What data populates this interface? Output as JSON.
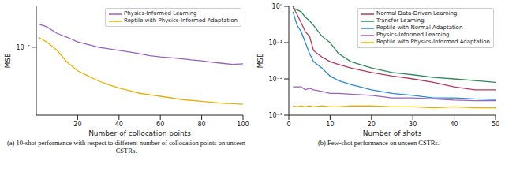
{
  "chart_data": [
    {
      "type": "line",
      "title": "(a) 10-shot performance with respect to different number of collocation points on unseen CSTRs.",
      "x_label": "Number of collocation points",
      "y_label": "MSE",
      "log": "y",
      "legend": "upper right",
      "x": [
        1,
        5,
        10,
        15,
        20,
        25,
        30,
        35,
        40,
        45,
        50,
        55,
        60,
        65,
        70,
        75,
        80,
        85,
        90,
        95,
        100
      ],
      "xlim": [
        0,
        100
      ],
      "xticks": [
        20,
        40,
        60,
        80,
        100
      ],
      "ylim": [
        0.001,
        0.04
      ],
      "yticks": [
        {
          "value": 0.01,
          "label": "10⁻²"
        }
      ],
      "series": [
        {
          "name": "Physics-Informed Learning",
          "color": "#9b5fc0",
          "line_style": "solid",
          "values": [
            0.022,
            0.02,
            0.016,
            0.014,
            0.012,
            0.011,
            0.01,
            0.0095,
            0.009,
            0.0085,
            0.008,
            0.0075,
            0.0072,
            0.007,
            0.0068,
            0.0065,
            0.0063,
            0.006,
            0.0058,
            0.0056,
            0.0057
          ]
        },
        {
          "name": "Reptile with Physics-Informed Adaptation",
          "color": "#e8b100",
          "line_style": "solid",
          "values": [
            0.014,
            0.012,
            0.009,
            0.006,
            0.0045,
            0.0038,
            0.0032,
            0.0028,
            0.0025,
            0.0023,
            0.0021,
            0.002,
            0.0019,
            0.0018,
            0.0017,
            0.00165,
            0.0016,
            0.00155,
            0.0015,
            0.00148,
            0.00145
          ]
        }
      ]
    },
    {
      "type": "line",
      "title": "(b) Few-shot performance on unseen CSTRs.",
      "x_label": "Number of shots",
      "y_label": "MSE",
      "log": "y",
      "legend": "upper right",
      "x": [
        1,
        2,
        3,
        4,
        5,
        6,
        8,
        10,
        12,
        15,
        20,
        25,
        30,
        35,
        40,
        45,
        50
      ],
      "xlim": [
        0,
        50
      ],
      "xticks": [
        0,
        10,
        20,
        30,
        40,
        50
      ],
      "ylim": [
        0.001,
        1
      ],
      "yticks": [
        {
          "value": 0.001,
          "label": "10⁻³"
        },
        {
          "value": 0.01,
          "label": "10⁻²"
        },
        {
          "value": 0.1,
          "label": "10⁻¹"
        },
        {
          "value": 1,
          "label": "10⁰"
        }
      ],
      "series": [
        {
          "name": "Normal Data-Driven Learning",
          "color": "#b5385a",
          "line_style": "solid",
          "values": [
            1.0,
            0.6,
            0.35,
            0.2,
            0.15,
            0.06,
            0.04,
            0.03,
            0.025,
            0.02,
            0.015,
            0.012,
            0.01,
            0.008,
            0.006,
            0.005,
            0.005
          ]
        },
        {
          "name": "Transfer Learning",
          "color": "#2e8b57",
          "line_style": "solid",
          "values": [
            0.9,
            0.8,
            0.7,
            0.5,
            0.4,
            0.3,
            0.15,
            0.1,
            0.05,
            0.03,
            0.02,
            0.015,
            0.013,
            0.011,
            0.01,
            0.009,
            0.008
          ]
        },
        {
          "name": "Reptile with Normal Adaptation",
          "color": "#2b88d8",
          "line_style": "solid",
          "values": [
            0.7,
            0.3,
            0.2,
            0.1,
            0.05,
            0.03,
            0.02,
            0.012,
            0.009,
            0.007,
            0.005,
            0.004,
            0.0035,
            0.003,
            0.003,
            0.0028,
            0.0027
          ]
        },
        {
          "name": "Physics-Informed Learning",
          "color": "#9b5fc0",
          "line_style": "solid",
          "values": [
            0.006,
            0.006,
            0.006,
            0.005,
            0.0055,
            0.005,
            0.0045,
            0.004,
            0.004,
            0.0038,
            0.0035,
            0.003,
            0.003,
            0.0028,
            0.0026,
            0.0025,
            0.0025
          ]
        },
        {
          "name": "Reptile with Physics-Informed Adaptation",
          "color": "#e8b100",
          "line_style": "solid",
          "values": [
            0.0018,
            0.0017,
            0.0018,
            0.0017,
            0.0018,
            0.0017,
            0.0018,
            0.0017,
            0.0017,
            0.0018,
            0.0018,
            0.0017,
            0.0017,
            0.0016,
            0.0017,
            0.0016,
            0.0016
          ]
        }
      ]
    }
  ]
}
